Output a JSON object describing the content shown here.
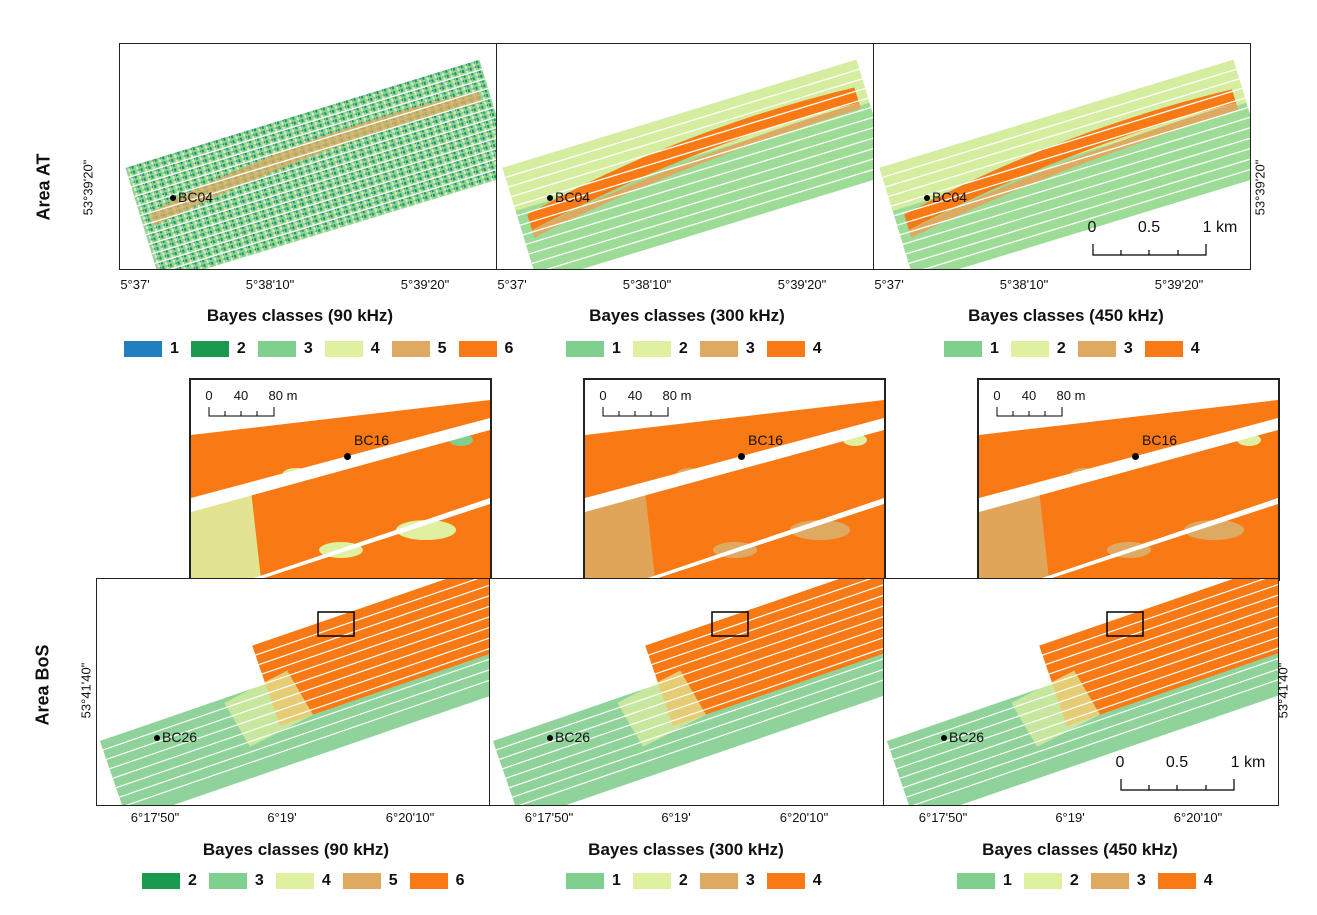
{
  "colors": {
    "class_1_90": "#1f7fbf",
    "dark_green": "#1a9a4f",
    "mid_green": "#7fd08f",
    "pale_green": "#dff0a0",
    "tan": "#deaa62",
    "orange": "#f97a14"
  },
  "area_at": {
    "label": "Area AT",
    "lat_label": "53°39'20\"",
    "x_ticks": [
      "5°37'",
      "5°38'10\"",
      "5°39'20\""
    ],
    "station": "BC04"
  },
  "area_bos": {
    "label": "Area BoS",
    "lat_label": "53°41'40\"",
    "x_ticks": [
      "6°17'50\"",
      "6°19'",
      "6°20'10\""
    ],
    "station": "BC26",
    "inset_station": "BC16"
  },
  "scalebar_km": {
    "labels": [
      "0",
      "0.5",
      "1 km"
    ]
  },
  "scalebar_m": {
    "labels": [
      "0",
      "40",
      "80 m"
    ]
  },
  "legends_at": [
    {
      "title": "Bayes classes (90 kHz)",
      "items": [
        {
          "label": "1",
          "color": "#1f7fbf"
        },
        {
          "label": "2",
          "color": "#1a9a4f"
        },
        {
          "label": "3",
          "color": "#7fd08f"
        },
        {
          "label": "4",
          "color": "#dff0a0"
        },
        {
          "label": "5",
          "color": "#deaa62"
        },
        {
          "label": "6",
          "color": "#f97a14"
        }
      ]
    },
    {
      "title": "Bayes classes (300 kHz)",
      "items": [
        {
          "label": "1",
          "color": "#7fd08f"
        },
        {
          "label": "2",
          "color": "#dff0a0"
        },
        {
          "label": "3",
          "color": "#deaa62"
        },
        {
          "label": "4",
          "color": "#f97a14"
        }
      ]
    },
    {
      "title": "Bayes classes (450 kHz)",
      "items": [
        {
          "label": "1",
          "color": "#7fd08f"
        },
        {
          "label": "2",
          "color": "#dff0a0"
        },
        {
          "label": "3",
          "color": "#deaa62"
        },
        {
          "label": "4",
          "color": "#f97a14"
        }
      ]
    }
  ],
  "legends_bos": [
    {
      "title": "Bayes classes (90 kHz)",
      "items": [
        {
          "label": "2",
          "color": "#1a9a4f"
        },
        {
          "label": "3",
          "color": "#7fd08f"
        },
        {
          "label": "4",
          "color": "#dff0a0"
        },
        {
          "label": "5",
          "color": "#deaa62"
        },
        {
          "label": "6",
          "color": "#f97a14"
        }
      ]
    },
    {
      "title": "Bayes classes (300 kHz)",
      "items": [
        {
          "label": "1",
          "color": "#7fd08f"
        },
        {
          "label": "2",
          "color": "#dff0a0"
        },
        {
          "label": "3",
          "color": "#deaa62"
        },
        {
          "label": "4",
          "color": "#f97a14"
        }
      ]
    },
    {
      "title": "Bayes classes (450 kHz)",
      "items": [
        {
          "label": "1",
          "color": "#7fd08f"
        },
        {
          "label": "2",
          "color": "#dff0a0"
        },
        {
          "label": "3",
          "color": "#deaa62"
        },
        {
          "label": "4",
          "color": "#f97a14"
        }
      ]
    }
  ]
}
